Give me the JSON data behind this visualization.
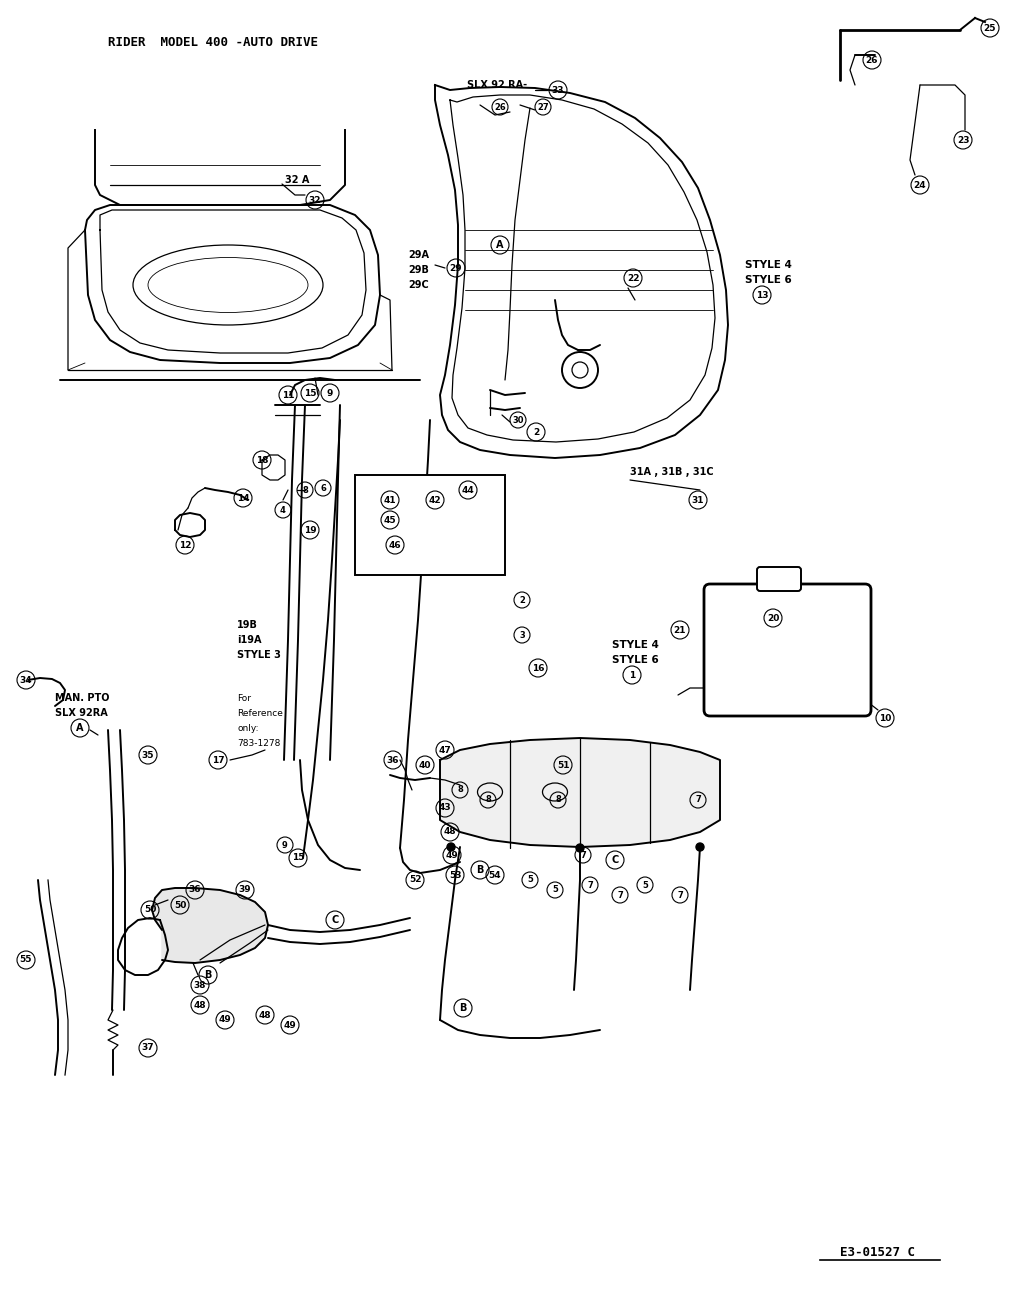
{
  "title": "RIDER  MODEL 400 -AUTO DRIVE",
  "diagram_code": "E3-01527 C",
  "bg_color": "#ffffff",
  "text_color": "#000000",
  "title_fontsize": 9,
  "code_fontsize": 9,
  "figsize": [
    10.32,
    12.99
  ],
  "dpi": 100,
  "note_text": [
    "For",
    "Reference",
    "only:",
    "783-1278"
  ],
  "style4_6_text": [
    "STYLE 4",
    "STYLE 6"
  ],
  "style4_label_right": [
    "STYLE 4",
    "STYLE 6"
  ],
  "man_pto_text": [
    "MAN. PTO",
    "SLX 92RA"
  ],
  "slx_label": "SLX 92 RA-",
  "style3_text": [
    "19B",
    " i19A",
    "STYLE 3"
  ],
  "labels_31": "31A , 31B , 31C"
}
